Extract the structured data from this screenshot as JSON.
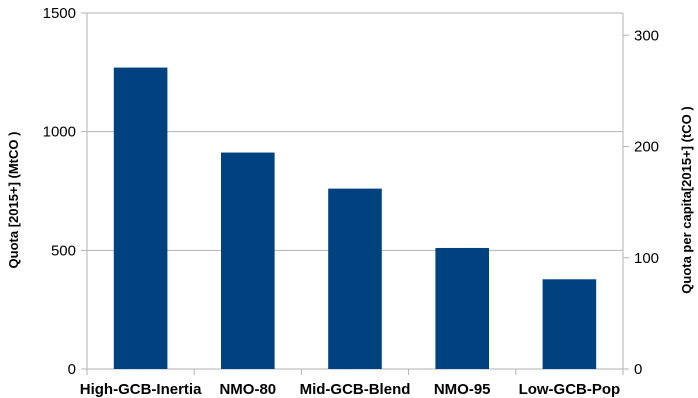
{
  "chart_data": {
    "type": "bar",
    "categories": [
      "High-GCB-Inertia",
      "NMO-80",
      "Mid-GCB-Blend",
      "NMO-95",
      "Low-GCB-Pop"
    ],
    "series": [
      {
        "values": [
          1270,
          912,
          760,
          510,
          378
        ]
      }
    ],
    "ylabel": "Quota [2015+] (MtCO )",
    "ylabel_right": "Quota per capita[2015+]  (tCO )",
    "ylim": [
      0,
      1500
    ],
    "yticks": [
      0,
      500,
      1000,
      1500
    ],
    "ylim_right": [
      0,
      320
    ],
    "yticks_right": [
      0,
      100,
      200,
      300
    ],
    "bar_color": "#00427f",
    "grid_color": "#b3b3b3",
    "grid": true,
    "legend": "none"
  }
}
